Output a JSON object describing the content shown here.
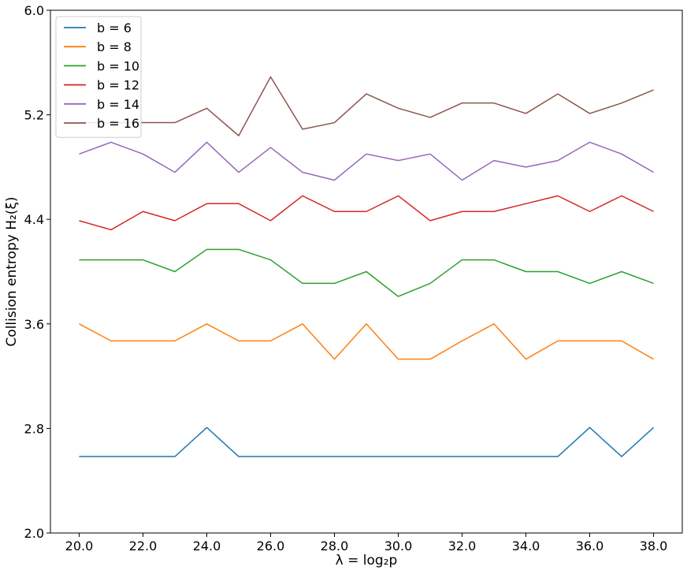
{
  "chart_data": {
    "type": "line",
    "xlabel": "λ = log₂p",
    "ylabel": "Collision entropy H₂(ξ)",
    "xlim": [
      19.1,
      38.9
    ],
    "ylim": [
      2.0,
      6.0
    ],
    "x_ticks": [
      "20.0",
      "22.0",
      "24.0",
      "26.0",
      "28.0",
      "30.0",
      "32.0",
      "34.0",
      "36.0",
      "38.0"
    ],
    "y_ticks": [
      "2.0",
      "2.8",
      "3.6",
      "4.4",
      "5.2",
      "6.0"
    ],
    "x_tick_values": [
      20,
      22,
      24,
      26,
      28,
      30,
      32,
      34,
      36,
      38
    ],
    "y_tick_values": [
      2.0,
      2.8,
      3.6,
      4.4,
      5.2,
      6.0
    ],
    "legend_position": "top-left",
    "grid": false,
    "x": [
      20,
      21,
      22,
      23,
      24,
      25,
      26,
      27,
      28,
      29,
      30,
      31,
      32,
      33,
      34,
      35,
      36,
      37,
      38
    ],
    "series": [
      {
        "name": "b = 6",
        "color": "#1f77b4",
        "values": [
          2.585,
          2.585,
          2.585,
          2.585,
          2.807,
          2.585,
          2.585,
          2.585,
          2.585,
          2.585,
          2.585,
          2.585,
          2.585,
          2.585,
          2.585,
          2.585,
          2.807,
          2.585,
          2.807
        ]
      },
      {
        "name": "b = 8",
        "color": "#ff7f0e",
        "values": [
          3.6,
          3.47,
          3.47,
          3.47,
          3.6,
          3.47,
          3.47,
          3.6,
          3.33,
          3.6,
          3.33,
          3.33,
          3.47,
          3.6,
          3.33,
          3.47,
          3.47,
          3.47,
          3.33
        ]
      },
      {
        "name": "b = 10",
        "color": "#2ca02c",
        "values": [
          4.09,
          4.09,
          4.09,
          4.0,
          4.17,
          4.17,
          4.09,
          3.91,
          3.91,
          4.0,
          3.81,
          3.91,
          4.09,
          4.09,
          4.0,
          4.0,
          3.91,
          4.0,
          3.91
        ]
      },
      {
        "name": "b = 12",
        "color": "#d62728",
        "values": [
          4.39,
          4.32,
          4.46,
          4.39,
          4.52,
          4.52,
          4.39,
          4.58,
          4.46,
          4.46,
          4.58,
          4.39,
          4.46,
          4.46,
          4.52,
          4.58,
          4.46,
          4.58,
          4.46
        ]
      },
      {
        "name": "b = 14",
        "color": "#9467bd",
        "values": [
          4.9,
          4.99,
          4.9,
          4.76,
          4.99,
          4.76,
          4.95,
          4.76,
          4.7,
          4.9,
          4.85,
          4.9,
          4.7,
          4.85,
          4.8,
          4.85,
          4.99,
          4.9,
          4.76
        ]
      },
      {
        "name": "b = 16",
        "color": "#8c564b",
        "values": [
          5.14,
          5.14,
          5.14,
          5.14,
          5.25,
          5.04,
          5.49,
          5.09,
          5.14,
          5.36,
          5.25,
          5.18,
          5.29,
          5.29,
          5.21,
          5.36,
          5.21,
          5.29,
          5.39
        ]
      }
    ]
  }
}
